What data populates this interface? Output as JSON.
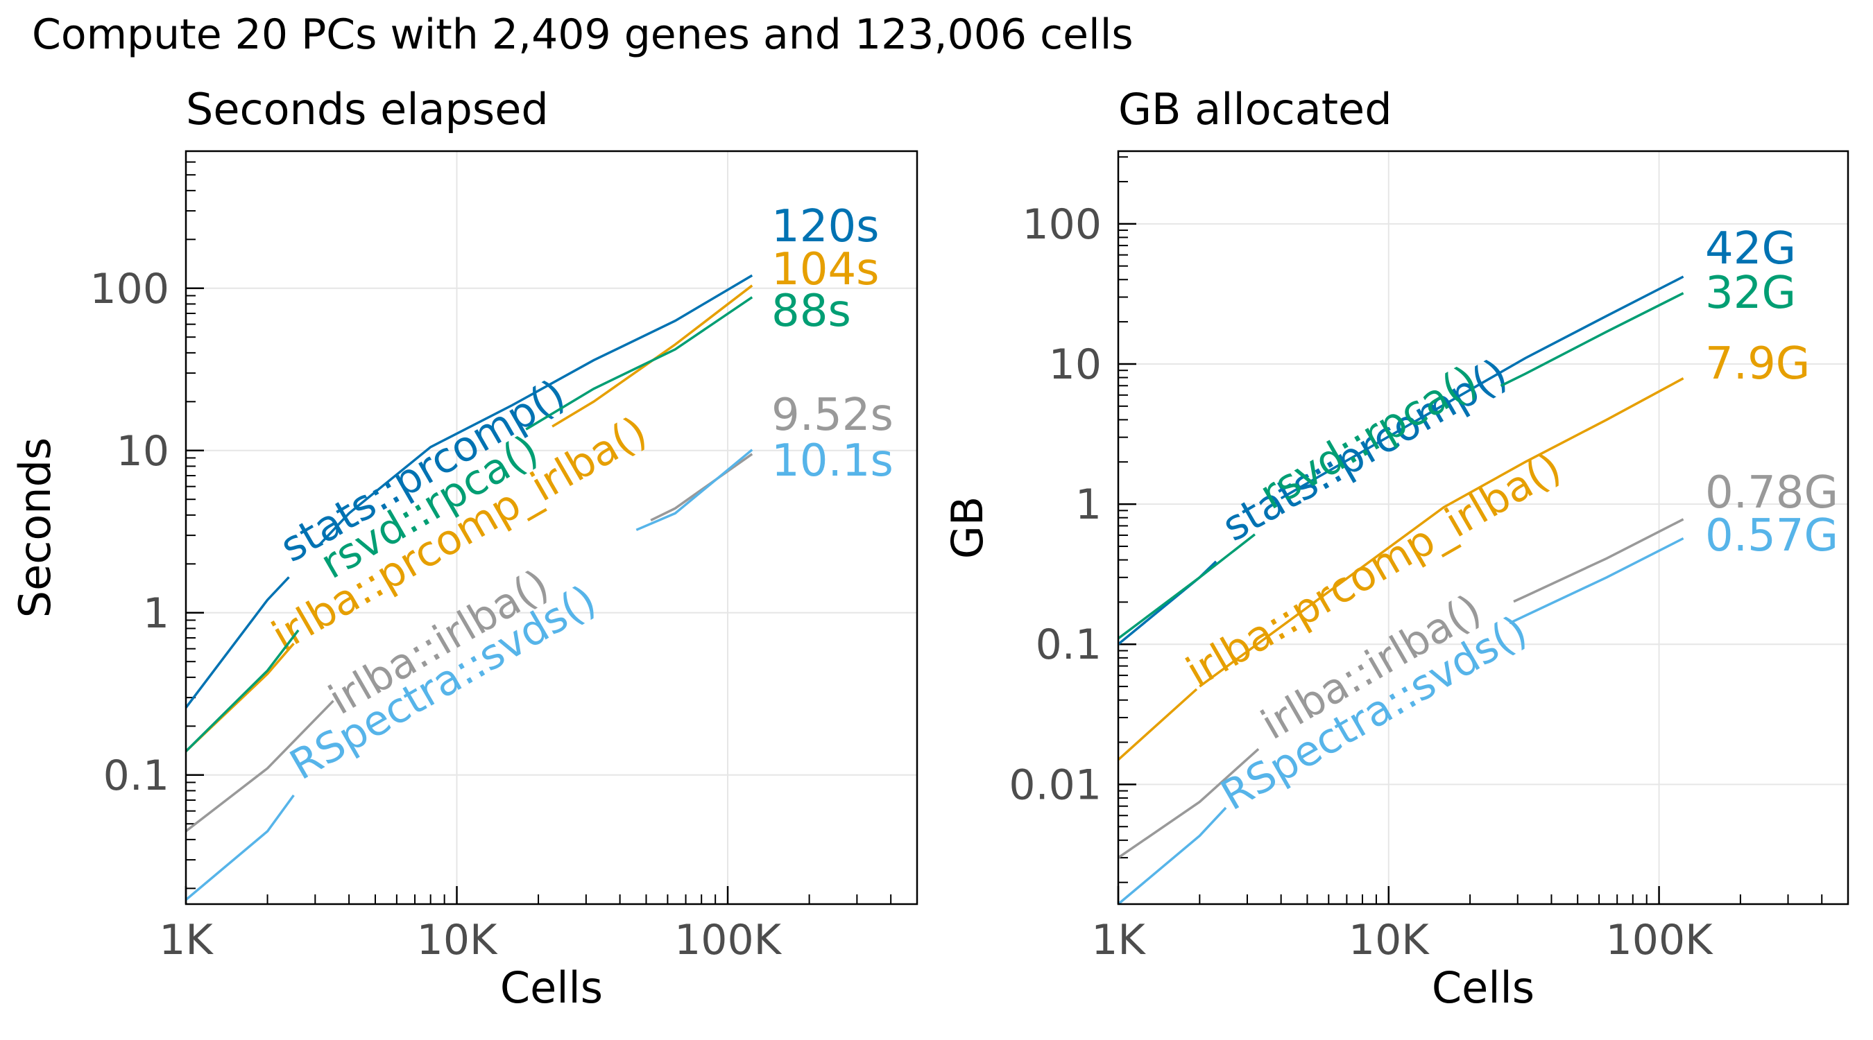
{
  "figure": {
    "title": "Compute 20 PCs with 2,409 genes and 123,006 cells"
  },
  "colors": {
    "stats_prcomp": "#0072B2",
    "irlba_prcomp_irlba": "#E69F00",
    "rsvd_rpca": "#009E73",
    "irlba_irlba": "#999999",
    "RSpectra_svds": "#56B4E9",
    "grid": "#e6e6e6",
    "tick_text": "#4d4d4d"
  },
  "chart_data": [
    {
      "type": "line",
      "title": "Seconds elapsed",
      "xlabel": "Cells",
      "ylabel": "Seconds",
      "xscale": "log",
      "yscale": "log",
      "xlim": [
        1000,
        500000
      ],
      "ylim": [
        0.016,
        700
      ],
      "xticks": [
        1000,
        10000,
        100000
      ],
      "xticklabels": [
        "1K",
        "10K",
        "100K"
      ],
      "yticks": [
        0.1,
        1,
        10,
        100
      ],
      "yticklabels": [
        "0.1",
        "1",
        "10",
        "100"
      ],
      "grid": true,
      "x": [
        1000,
        2000,
        4000,
        8000,
        16000,
        32000,
        64000,
        123006
      ],
      "series": [
        {
          "name": "stats::prcomp()",
          "key": "stats_prcomp",
          "end_label": "120s",
          "values": [
            0.26,
            1.2,
            4.1,
            10.5,
            19,
            36,
            63,
            120
          ]
        },
        {
          "name": "irlba::prcomp_irlba()",
          "key": "irlba_prcomp_irlba",
          "end_label": "104s",
          "values": [
            0.14,
            0.42,
            1.6,
            4.5,
            10,
            20,
            45,
            104
          ]
        },
        {
          "name": "rsvd::rpca()",
          "key": "rsvd_rpca",
          "end_label": "88s",
          "values": [
            0.14,
            0.44,
            2.0,
            5.5,
            12,
            24,
            42,
            88
          ]
        },
        {
          "name": "irlba::irlba()",
          "key": "irlba_irlba",
          "end_label": "9.52s",
          "values": [
            0.045,
            0.11,
            0.36,
            0.85,
            1.55,
            2.5,
            4.4,
            9.52
          ]
        },
        {
          "name": "RSpectra::svds()",
          "key": "RSpectra_svds",
          "end_label": "10.1s",
          "values": [
            0.017,
            0.045,
            0.22,
            0.62,
            1.35,
            2.5,
            4.1,
            10.1
          ]
        }
      ]
    },
    {
      "type": "line",
      "title": "GB allocated",
      "xlabel": "Cells",
      "ylabel": "GB",
      "xscale": "log",
      "yscale": "log",
      "xlim": [
        1000,
        500000
      ],
      "ylim": [
        0.0014,
        330
      ],
      "xticks": [
        1000,
        10000,
        100000
      ],
      "xticklabels": [
        "1K",
        "10K",
        "100K"
      ],
      "yticks": [
        0.01,
        0.1,
        1,
        10,
        100
      ],
      "yticklabels": [
        "0.01",
        "0.1",
        "1",
        "10",
        "100"
      ],
      "grid": true,
      "x": [
        1000,
        2000,
        4000,
        8000,
        16000,
        32000,
        64000,
        123006
      ],
      "series": [
        {
          "name": "stats::prcomp()",
          "key": "stats_prcomp",
          "end_label": "42G",
          "values": [
            0.1,
            0.3,
            1.1,
            2.8,
            5.6,
            11,
            22,
            42
          ]
        },
        {
          "name": "rsvd::rpca()",
          "key": "rsvd_rpca",
          "end_label": "32G",
          "values": [
            0.11,
            0.3,
            0.85,
            2.2,
            4.4,
            8.5,
            17,
            32
          ]
        },
        {
          "name": "irlba::prcomp_irlba()",
          "key": "irlba_prcomp_irlba",
          "end_label": "7.9G",
          "values": [
            0.015,
            0.05,
            0.17,
            0.42,
            0.95,
            2.0,
            4.0,
            7.9
          ]
        },
        {
          "name": "irlba::irlba()",
          "key": "irlba_irlba",
          "end_label": "0.78G",
          "values": [
            0.003,
            0.0075,
            0.025,
            0.06,
            0.12,
            0.22,
            0.41,
            0.78
          ]
        },
        {
          "name": "RSpectra::svds()",
          "key": "RSpectra_svds",
          "end_label": "0.57G",
          "values": [
            0.0014,
            0.0043,
            0.018,
            0.042,
            0.085,
            0.16,
            0.3,
            0.57
          ]
        }
      ]
    }
  ]
}
